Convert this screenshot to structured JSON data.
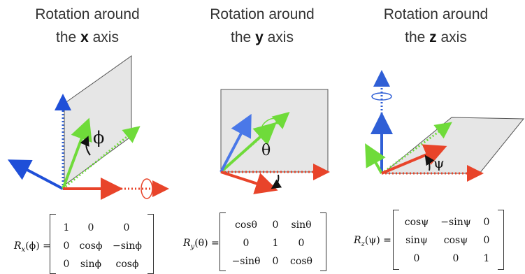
{
  "panels": [
    {
      "title_line1": "Rotation around",
      "title_pre": "the ",
      "axis": "x",
      "title_post": " axis",
      "angle_symbol": "ϕ",
      "matrix_name": "R",
      "matrix_sub": "x",
      "matrix_arg": "(ϕ) =",
      "rows": [
        [
          "1",
          "0",
          "0"
        ],
        [
          "0",
          "cosϕ",
          "−sinϕ"
        ],
        [
          "0",
          "sinϕ",
          "cosϕ"
        ]
      ]
    },
    {
      "title_line1": "Rotation around",
      "title_pre": "the ",
      "axis": "y",
      "title_post": " axis",
      "angle_symbol": "θ",
      "matrix_name": "R",
      "matrix_sub": "y",
      "matrix_arg": "(θ) =",
      "rows": [
        [
          "cosθ",
          "0",
          "sinθ"
        ],
        [
          "0",
          "1",
          "0"
        ],
        [
          "−sinθ",
          "0",
          "cosθ"
        ]
      ]
    },
    {
      "title_line1": "Rotation around",
      "title_pre": "the ",
      "axis": "z",
      "title_post": " axis",
      "angle_symbol": "ψ",
      "matrix_name": "R",
      "matrix_sub": "z",
      "matrix_arg": "(ψ) =",
      "rows": [
        [
          "cosψ",
          "−sinψ",
          "0"
        ],
        [
          "sinψ",
          "cosψ",
          "0"
        ],
        [
          "0",
          "0",
          "1"
        ]
      ]
    }
  ],
  "colors": {
    "x_axis": "#e8442a",
    "y_axis": "#2f5fd6",
    "z_axis": "#6fdb3a",
    "rotated_blue": "#1f4fd8",
    "plane_fill": "#e6e6e6",
    "plane_stroke": "#555555"
  }
}
